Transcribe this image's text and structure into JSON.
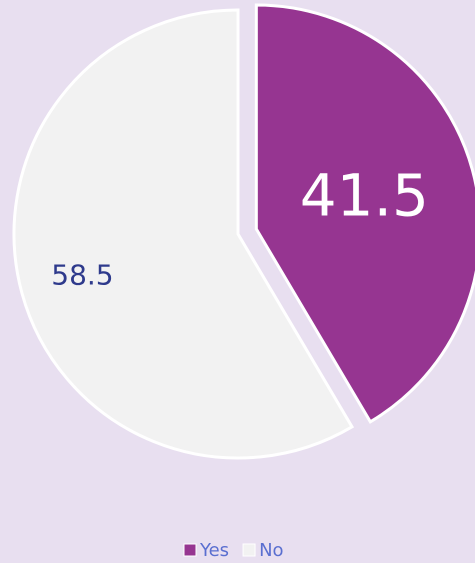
{
  "chart_data": {
    "type": "pie",
    "categories": [
      "Yes",
      "No"
    ],
    "values": [
      41.5,
      58.5
    ],
    "colors": [
      "#963591",
      "#f2f2f2"
    ],
    "legend": "bottom"
  }
}
